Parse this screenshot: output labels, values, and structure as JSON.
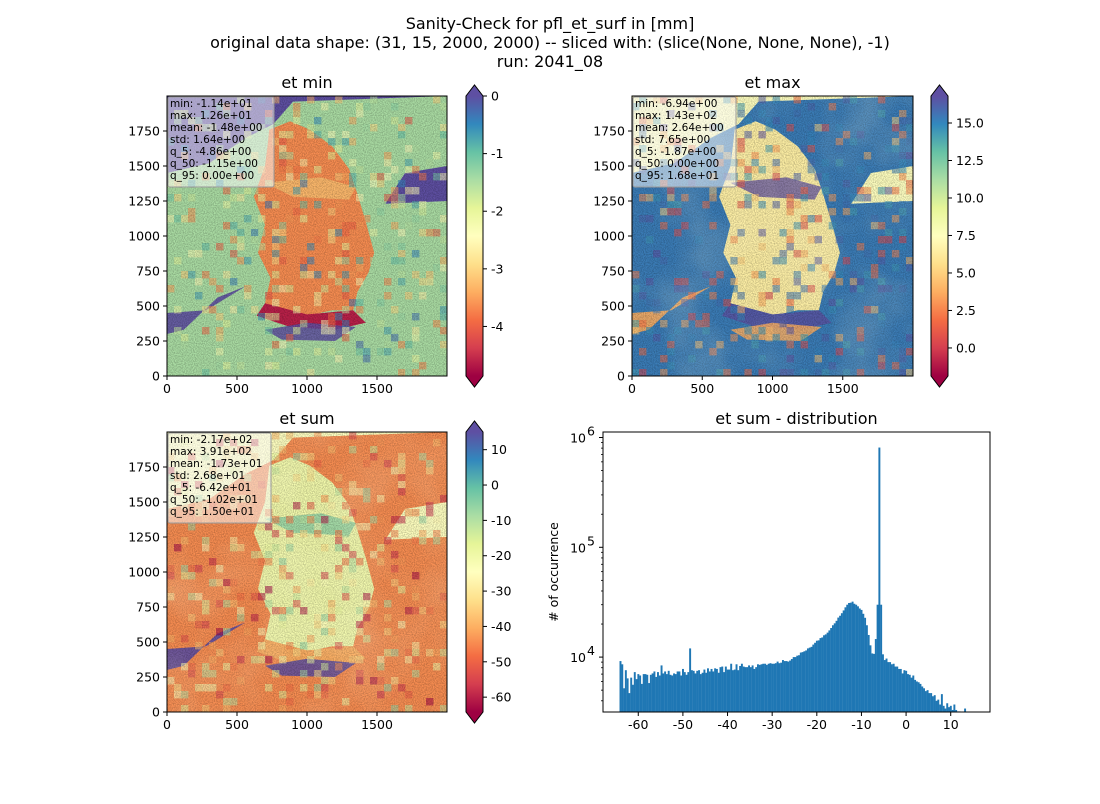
{
  "figure": {
    "title_lines": [
      "Sanity-Check for pfl_et_surf in [mm]",
      "original data shape: (31, 15, 2000, 2000) -- sliced with: (slice(None, None, None), -1)",
      "run: 2041_08"
    ]
  },
  "colors": {
    "cmap_spectral": [
      "#9e0142",
      "#d53e4f",
      "#f46d43",
      "#fdae61",
      "#fee08b",
      "#ffffbf",
      "#e6f598",
      "#abdda4",
      "#66c2a5",
      "#3288bd",
      "#5e4fa2"
    ],
    "hist_bar": "#1f77b4"
  },
  "chart_data": [
    {
      "type": "heatmap",
      "title": "et min",
      "xlim": [
        0,
        2000
      ],
      "ylim": [
        0,
        2000
      ],
      "xticks": [
        0,
        500,
        1000,
        1500
      ],
      "yticks": [
        0,
        250,
        500,
        750,
        1000,
        1250,
        1500,
        1750
      ],
      "colorbar": {
        "range": [
          -4.86,
          0.0
        ],
        "ticks": [
          0,
          -1,
          -2,
          -3,
          -4
        ],
        "extend": "both"
      },
      "stats": [
        "min: -1.14e+01",
        "max: 1.26e+01",
        "mean: -1.48e+00",
        "std: 1.64e+00",
        "q_5: -4.86e+00",
        "q_50: -1.15e+00",
        "q_95: 0.00e+00"
      ]
    },
    {
      "type": "heatmap",
      "title": "et max",
      "xlim": [
        0,
        2000
      ],
      "ylim": [
        0,
        2000
      ],
      "xticks": [
        0,
        500,
        1000,
        1500
      ],
      "yticks": [
        0,
        250,
        500,
        750,
        1000,
        1250,
        1500,
        1750
      ],
      "colorbar": {
        "range": [
          -1.87,
          16.8
        ],
        "ticks": [
          "0.0",
          "2.5",
          "5.0",
          "7.5",
          "10.0",
          "12.5",
          "15.0"
        ],
        "extend": "both"
      },
      "stats": [
        "min: -6.94e+00",
        "max: 1.43e+02",
        "mean: 2.64e+00",
        "std: 7.65e+00",
        "q_5: -1.87e+00",
        "q_50: 0.00e+00",
        "q_95: 1.68e+01"
      ]
    },
    {
      "type": "heatmap",
      "title": "et sum",
      "xlim": [
        0,
        2000
      ],
      "ylim": [
        0,
        2000
      ],
      "xticks": [
        0,
        500,
        1000,
        1500
      ],
      "yticks": [
        0,
        250,
        500,
        750,
        1000,
        1250,
        1500,
        1750
      ],
      "colorbar": {
        "range": [
          -64.2,
          15.0
        ],
        "ticks": [
          10,
          0,
          -10,
          -20,
          -30,
          -40,
          -50,
          -60
        ],
        "extend": "both"
      },
      "stats": [
        "min: -2.17e+02",
        "max: 3.91e+02",
        "mean: -1.73e+01",
        "std: 2.68e+01",
        "q_5: -6.42e+01",
        "q_50: -1.02e+01",
        "q_95: 1.50e+01"
      ]
    },
    {
      "type": "bar",
      "title": "et sum - distribution",
      "ylabel": "# of occurrence",
      "yscale": "log",
      "xlim": [
        -67.9,
        18.8
      ],
      "ylim_log10": [
        3.5,
        6.05
      ],
      "xticks": [
        -60,
        -50,
        -40,
        -30,
        -20,
        -10,
        0,
        10
      ],
      "yticks": [
        {
          "pos": 4,
          "base": "10",
          "exp": "4"
        },
        {
          "pos": 5,
          "base": "10",
          "exp": "5"
        },
        {
          "pos": 6,
          "base": "10",
          "exp": "6"
        }
      ],
      "x_start": -64.2,
      "bin_width": 0.4,
      "values": [
        9200,
        8600,
        5200,
        7600,
        6400,
        4700,
        6500,
        5600,
        7300,
        6300,
        7000,
        6800,
        5700,
        7000,
        7000,
        6900,
        5800,
        6900,
        7100,
        7400,
        6600,
        7300,
        6800,
        8400,
        7100,
        7400,
        7000,
        7500,
        6900,
        6800,
        7100,
        7000,
        7400,
        7400,
        6800,
        7800,
        7300,
        6900,
        7300,
        12000,
        7600,
        7500,
        7100,
        7500,
        7600,
        7000,
        7200,
        7700,
        7200,
        7900,
        7400,
        7800,
        7400,
        7900,
        7800,
        7200,
        8100,
        8200,
        7300,
        8200,
        7700,
        7700,
        8700,
        7600,
        7700,
        8600,
        7600,
        8300,
        8700,
        8200,
        8100,
        8100,
        8400,
        8100,
        8400,
        7800,
        8100,
        8600,
        8500,
        8600,
        8700,
        8700,
        8500,
        8700,
        8800,
        8700,
        8700,
        8800,
        9100,
        8800,
        8900,
        9400,
        9200,
        9200,
        9100,
        9300,
        9600,
        10000,
        10000,
        10300,
        10400,
        11000,
        11100,
        11300,
        11500,
        12000,
        12200,
        12400,
        13000,
        13500,
        14100,
        14200,
        14900,
        15100,
        15800,
        16100,
        16700,
        17500,
        18400,
        19500,
        20300,
        21400,
        22900,
        23800,
        25100,
        26600,
        28400,
        30000,
        31100,
        31300,
        32000,
        30600,
        30000,
        29000,
        27700,
        26900,
        24800,
        22800,
        19500,
        15900,
        12800,
        10800,
        10700,
        14600,
        30000,
        810000,
        30000,
        10600,
        9400,
        9700,
        9000,
        9000,
        8600,
        8700,
        8200,
        8200,
        7800,
        7800,
        7100,
        7600,
        7500,
        7000,
        6900,
        6500,
        6800,
        6200,
        6000,
        5900,
        5700,
        5400,
        5200,
        4900,
        5000,
        4700,
        4700,
        4400,
        4500,
        4000,
        4100,
        3700,
        4600,
        3600,
        3400,
        3800,
        3500,
        3600,
        3300,
        3700,
        3300,
        3200,
        3200,
        3100,
        3100,
        3400
      ]
    }
  ]
}
